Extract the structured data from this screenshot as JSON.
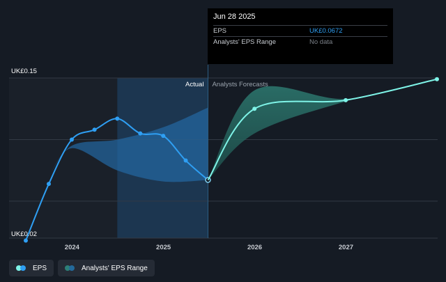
{
  "chart_data": {
    "type": "line",
    "y_label_top": "UK£0.15",
    "y_label_bottom": "UK£0.02",
    "ylim": [
      0.02,
      0.15
    ],
    "x_ticks": [
      "2024",
      "2025",
      "2026",
      "2027"
    ],
    "section_labels": {
      "actual": "Actual",
      "forecast": "Analysts Forecasts"
    },
    "series": [
      {
        "name": "EPS",
        "color": "#2f9ff3",
        "points": [
          [
            "2023-06-30",
            0.018
          ],
          [
            "2023-09-30",
            0.064
          ],
          [
            "2023-12-31",
            0.1
          ],
          [
            "2024-03-31",
            0.108
          ],
          [
            "2024-06-30",
            0.117
          ],
          [
            "2024-09-30",
            0.105
          ],
          [
            "2024-12-31",
            0.103
          ],
          [
            "2025-03-31",
            0.083
          ],
          [
            "2025-06-28",
            0.0672
          ]
        ]
      },
      {
        "name": "EPS forecast",
        "color": "#7ff4e8",
        "points": [
          [
            "2025-06-28",
            0.0672
          ],
          [
            "2025-12-31",
            0.125
          ],
          [
            "2026-12-31",
            0.132
          ],
          [
            "2027-12-31",
            0.149
          ]
        ]
      }
    ],
    "analyst_range_past": {
      "x": [
        "2023-09-30",
        "2023-12-31",
        "2024-06-30",
        "2024-12-31",
        "2025-06-28"
      ],
      "high": [
        0.07,
        0.095,
        0.1,
        0.11,
        0.126
      ],
      "low": [
        0.07,
        0.093,
        0.075,
        0.066,
        0.0672
      ]
    },
    "analyst_range_forecast": {
      "x": [
        "2025-06-28",
        "2025-12-31",
        "2026-12-31",
        "2027-12-31"
      ],
      "high": [
        0.0672,
        0.14,
        0.133,
        0.149
      ],
      "low": [
        0.0672,
        0.105,
        0.131,
        0.149
      ]
    }
  },
  "tooltip": {
    "date": "Jun 28 2025",
    "eps_label": "EPS",
    "eps_value": "UK£0.0672",
    "range_label": "Analysts' EPS Range",
    "range_value": "No data"
  },
  "legend": {
    "eps": "EPS",
    "range": "Analysts' EPS Range"
  }
}
